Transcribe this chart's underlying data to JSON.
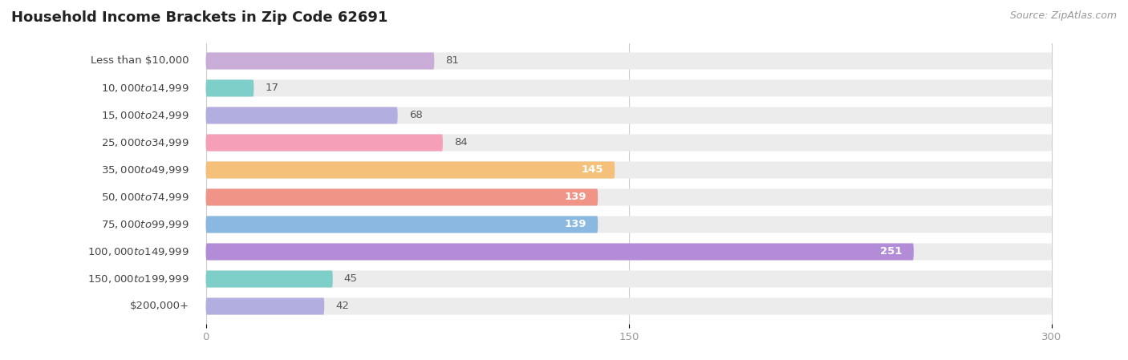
{
  "title": "Household Income Brackets in Zip Code 62691",
  "source": "Source: ZipAtlas.com",
  "categories": [
    "Less than $10,000",
    "$10,000 to $14,999",
    "$15,000 to $24,999",
    "$25,000 to $34,999",
    "$35,000 to $49,999",
    "$50,000 to $74,999",
    "$75,000 to $99,999",
    "$100,000 to $149,999",
    "$150,000 to $199,999",
    "$200,000+"
  ],
  "values": [
    81,
    17,
    68,
    84,
    145,
    139,
    139,
    251,
    45,
    42
  ],
  "bar_colors": [
    "#c9acd8",
    "#7ececa",
    "#b3aee0",
    "#f5a0b8",
    "#f5c07a",
    "#f09488",
    "#8ab8e0",
    "#b38cd8",
    "#7ececa",
    "#b3aee0"
  ],
  "bar_bg_color": "#ececec",
  "xlim_max": 300,
  "xticks": [
    0,
    150,
    300
  ],
  "background_color": "#ffffff",
  "title_fontsize": 13,
  "label_fontsize": 9.5,
  "value_fontsize": 9.5,
  "source_fontsize": 9,
  "bar_height": 0.62
}
